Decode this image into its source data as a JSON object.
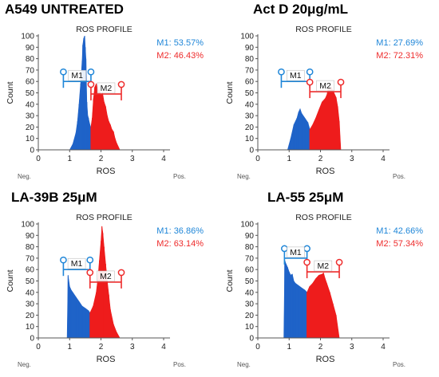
{
  "chart_data": [
    {
      "panel_title": "A549 UNTREATED",
      "type": "histogram",
      "title": "ROS PROFILE",
      "xlabel": "ROS",
      "ylabel": "Count",
      "x_end_labels": [
        "Neg.",
        "Pos."
      ],
      "xlim": [
        0,
        4
      ],
      "ylim": [
        0,
        100
      ],
      "x_ticks": [
        0,
        1,
        2,
        3,
        4
      ],
      "y_ticks": [
        0,
        10,
        20,
        30,
        40,
        50,
        60,
        70,
        80,
        90,
        100
      ],
      "gate_split": 1.68,
      "series": [
        {
          "name": "M1",
          "color": "#1f63c8",
          "x": [
            1.0,
            1.1,
            1.2,
            1.25,
            1.3,
            1.35,
            1.4,
            1.42,
            1.45,
            1.48,
            1.5,
            1.52,
            1.55,
            1.58,
            1.6,
            1.63,
            1.67
          ],
          "y": [
            0,
            5,
            15,
            25,
            40,
            58,
            78,
            92,
            98,
            100,
            90,
            80,
            42,
            30,
            28,
            24,
            20
          ]
        },
        {
          "name": "M2",
          "color": "#ee1c1c",
          "x": [
            1.68,
            1.72,
            1.76,
            1.8,
            1.85,
            1.9,
            1.95,
            2.0,
            2.05,
            2.1,
            2.15,
            2.2,
            2.25,
            2.3,
            2.35,
            2.4,
            2.45,
            2.5,
            2.6
          ],
          "y": [
            20,
            28,
            45,
            55,
            58,
            52,
            53,
            48,
            50,
            42,
            38,
            30,
            25,
            22,
            18,
            16,
            10,
            6,
            0
          ]
        }
      ],
      "gates": [
        {
          "name": "M1",
          "percent": "M1: 53.57%",
          "x_start": 0.8,
          "x_end": 1.68,
          "level": 60,
          "color": "#1f86d8"
        },
        {
          "name": "M2",
          "percent": "M2: 46.43%",
          "x_start": 1.68,
          "x_end": 2.65,
          "level": 49,
          "color": "#ee2b2b"
        }
      ]
    },
    {
      "panel_title": "Act D 20μg/mL",
      "type": "histogram",
      "title": "ROS PROFILE",
      "xlabel": "ROS",
      "ylabel": "Count",
      "x_end_labels": [
        "Neg.",
        "Pos."
      ],
      "xlim": [
        0,
        4
      ],
      "ylim": [
        0,
        100
      ],
      "x_ticks": [
        0,
        1,
        2,
        3,
        4
      ],
      "y_ticks": [
        0,
        10,
        20,
        30,
        40,
        50,
        60,
        70,
        80,
        90,
        100
      ],
      "gate_split": 1.66,
      "series": [
        {
          "name": "M1",
          "color": "#1f63c8",
          "x": [
            0.95,
            1.05,
            1.15,
            1.25,
            1.3,
            1.35,
            1.4,
            1.5,
            1.6,
            1.66
          ],
          "y": [
            0,
            10,
            22,
            28,
            33,
            36,
            32,
            28,
            24,
            18
          ]
        },
        {
          "name": "M2",
          "color": "#ee1c1c",
          "x": [
            1.66,
            1.75,
            1.85,
            1.95,
            2.05,
            2.15,
            2.2,
            2.25,
            2.3,
            2.35,
            2.4,
            2.5,
            2.55,
            2.6,
            2.65
          ],
          "y": [
            18,
            22,
            28,
            35,
            42,
            45,
            48,
            54,
            53,
            55,
            52,
            46,
            38,
            25,
            0
          ]
        }
      ],
      "gates": [
        {
          "name": "M1",
          "percent": "M1: 27.69%",
          "x_start": 0.75,
          "x_end": 1.66,
          "level": 60,
          "color": "#1f86d8"
        },
        {
          "name": "M2",
          "percent": "M2: 72.31%",
          "x_start": 1.66,
          "x_end": 2.65,
          "level": 51,
          "color": "#ee2b2b"
        }
      ]
    },
    {
      "panel_title": "LA-39B 25μM",
      "type": "histogram",
      "title": "ROS PROFILE",
      "xlabel": "ROS",
      "ylabel": "Count",
      "x_end_labels": [
        "Neg.",
        "Pos."
      ],
      "xlim": [
        0,
        4
      ],
      "ylim": [
        0,
        100
      ],
      "x_ticks": [
        0,
        1,
        2,
        3,
        4
      ],
      "y_ticks": [
        0,
        10,
        20,
        30,
        40,
        50,
        60,
        70,
        80,
        90,
        100
      ],
      "gate_split": 1.65,
      "series": [
        {
          "name": "M1",
          "color": "#1f63c8",
          "x": [
            0.92,
            0.95,
            1.0,
            1.05,
            1.1,
            1.2,
            1.3,
            1.4,
            1.5,
            1.6,
            1.65
          ],
          "y": [
            0,
            55,
            45,
            42,
            40,
            36,
            32,
            28,
            26,
            24,
            22
          ]
        },
        {
          "name": "M2",
          "color": "#ee1c1c",
          "x": [
            1.65,
            1.75,
            1.85,
            1.9,
            1.95,
            2.0,
            2.03,
            2.06,
            2.1,
            2.15,
            2.2,
            2.25,
            2.3,
            2.4,
            2.5,
            2.6
          ],
          "y": [
            22,
            28,
            40,
            52,
            68,
            85,
            98,
            92,
            80,
            65,
            50,
            38,
            25,
            12,
            5,
            0
          ]
        }
      ],
      "gates": [
        {
          "name": "M1",
          "percent": "M1: 36.86%",
          "x_start": 0.8,
          "x_end": 1.65,
          "level": 60,
          "color": "#1f86d8"
        },
        {
          "name": "M2",
          "percent": "M2: 63.14%",
          "x_start": 1.65,
          "x_end": 2.65,
          "level": 49,
          "color": "#ee2b2b"
        }
      ]
    },
    {
      "panel_title": "LA-55 25μM",
      "type": "histogram",
      "title": "ROS PROFILE",
      "xlabel": "ROS",
      "ylabel": "Count",
      "x_end_labels": [
        "Neg.",
        "Pos."
      ],
      "xlim": [
        0,
        4
      ],
      "ylim": [
        0,
        100
      ],
      "x_ticks": [
        0,
        1,
        2,
        3,
        4
      ],
      "y_ticks": [
        0,
        10,
        20,
        30,
        40,
        50,
        60,
        70,
        80,
        90,
        100
      ],
      "gate_split": 1.57,
      "series": [
        {
          "name": "M1",
          "color": "#1f63c8",
          "x": [
            0.83,
            0.86,
            0.9,
            0.95,
            1.0,
            1.05,
            1.1,
            1.15,
            1.2,
            1.3,
            1.4,
            1.5,
            1.57
          ],
          "y": [
            0,
            68,
            65,
            62,
            58,
            55,
            56,
            50,
            48,
            46,
            44,
            42,
            40
          ]
        },
        {
          "name": "M2",
          "color": "#ee1c1c",
          "x": [
            1.57,
            1.65,
            1.75,
            1.85,
            1.95,
            2.05,
            2.1,
            2.15,
            2.2,
            2.3,
            2.4,
            2.5,
            2.6
          ],
          "y": [
            40,
            45,
            48,
            52,
            55,
            56,
            57,
            52,
            48,
            40,
            30,
            20,
            0
          ]
        }
      ],
      "gates": [
        {
          "name": "M1",
          "percent": "M1: 42.66%",
          "x_start": 0.85,
          "x_end": 1.57,
          "level": 70,
          "color": "#1f86d8"
        },
        {
          "name": "M2",
          "percent": "M2: 57.34%",
          "x_start": 1.57,
          "x_end": 2.6,
          "level": 58,
          "color": "#ee2b2b"
        }
      ]
    }
  ]
}
